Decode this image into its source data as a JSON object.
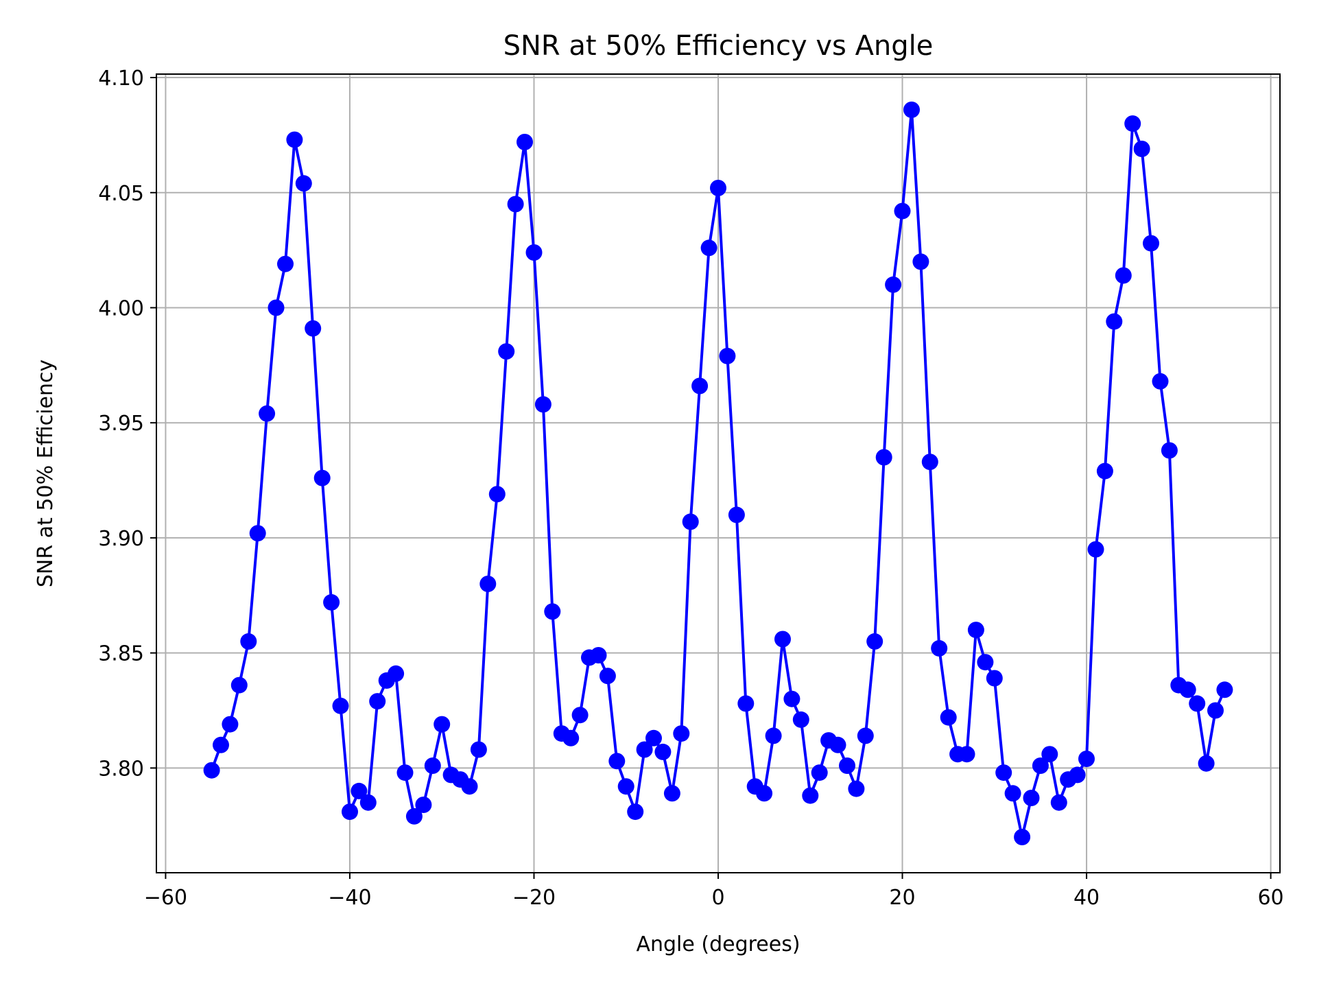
{
  "chart_data": {
    "type": "line",
    "title": "SNR at 50% Efficiency vs Angle",
    "xlabel": "Angle (degrees)",
    "ylabel": "SNR at 50% Efficiency",
    "xlim": [
      -61,
      61
    ],
    "ylim": [
      3.7545,
      4.1015
    ],
    "xticks": [
      -60,
      -40,
      -20,
      0,
      20,
      40,
      60
    ],
    "xtick_labels": [
      "−60",
      "−40",
      "−20",
      "0",
      "20",
      "40",
      "60"
    ],
    "yticks": [
      3.8,
      3.85,
      3.9,
      3.95,
      4.0,
      4.05,
      4.1
    ],
    "ytick_labels": [
      "3.80",
      "3.85",
      "3.90",
      "3.95",
      "4.00",
      "4.05",
      "4.10"
    ],
    "grid": true,
    "legend": "none",
    "line_color": "#0000ff",
    "marker": "circle",
    "series": [
      {
        "x": [
          -55,
          -54,
          -53,
          -52,
          -51,
          -50,
          -49,
          -48,
          -47,
          -46,
          -45,
          -44,
          -43,
          -42,
          -41,
          -40,
          -39,
          -38,
          -37,
          -36,
          -35,
          -34,
          -33,
          -32,
          -31,
          -30,
          -29,
          -28,
          -27,
          -26,
          -25,
          -24,
          -23,
          -22,
          -21,
          -20,
          -19,
          -18,
          -17,
          -16,
          -15,
          -14,
          -13,
          -12,
          -11,
          -10,
          -9,
          -8,
          -7,
          -6,
          -5,
          -4,
          -3,
          -2,
          -1,
          0,
          1,
          2,
          3,
          4,
          5,
          6,
          7,
          8,
          9,
          10,
          11,
          12,
          13,
          14,
          15,
          16,
          17,
          18,
          19,
          20,
          21,
          22,
          23,
          24,
          25,
          26,
          27,
          28,
          29,
          30,
          31,
          32,
          33,
          34,
          35,
          36,
          37,
          38,
          39,
          40,
          41,
          42,
          43,
          44,
          45,
          46,
          47,
          48,
          49,
          50,
          51,
          52,
          53,
          54,
          55
        ],
        "values": [
          3.799,
          3.81,
          3.819,
          3.836,
          3.855,
          3.902,
          3.954,
          4.0,
          4.019,
          4.073,
          4.054,
          3.991,
          3.926,
          3.872,
          3.827,
          3.781,
          3.79,
          3.785,
          3.829,
          3.838,
          3.841,
          3.798,
          3.779,
          3.784,
          3.801,
          3.819,
          3.797,
          3.795,
          3.792,
          3.808,
          3.88,
          3.919,
          3.981,
          4.045,
          4.072,
          4.024,
          3.958,
          3.868,
          3.815,
          3.813,
          3.823,
          3.848,
          3.849,
          3.84,
          3.803,
          3.792,
          3.781,
          3.808,
          3.813,
          3.807,
          3.789,
          3.815,
          3.907,
          3.966,
          4.026,
          4.052,
          3.979,
          3.91,
          3.828,
          3.792,
          3.789,
          3.814,
          3.856,
          3.83,
          3.821,
          3.788,
          3.798,
          3.812,
          3.81,
          3.801,
          3.791,
          3.814,
          3.855,
          3.935,
          4.01,
          4.042,
          4.086,
          4.02,
          3.933,
          3.852,
          3.822,
          3.806,
          3.806,
          3.86,
          3.846,
          3.839,
          3.798,
          3.789,
          3.77,
          3.787,
          3.801,
          3.806,
          3.785,
          3.795,
          3.797,
          3.804,
          3.895,
          3.929,
          3.994,
          4.014,
          4.08,
          4.069,
          4.028,
          3.968,
          3.938,
          3.836,
          3.834,
          3.828,
          3.802,
          3.825,
          3.834
        ]
      }
    ]
  }
}
